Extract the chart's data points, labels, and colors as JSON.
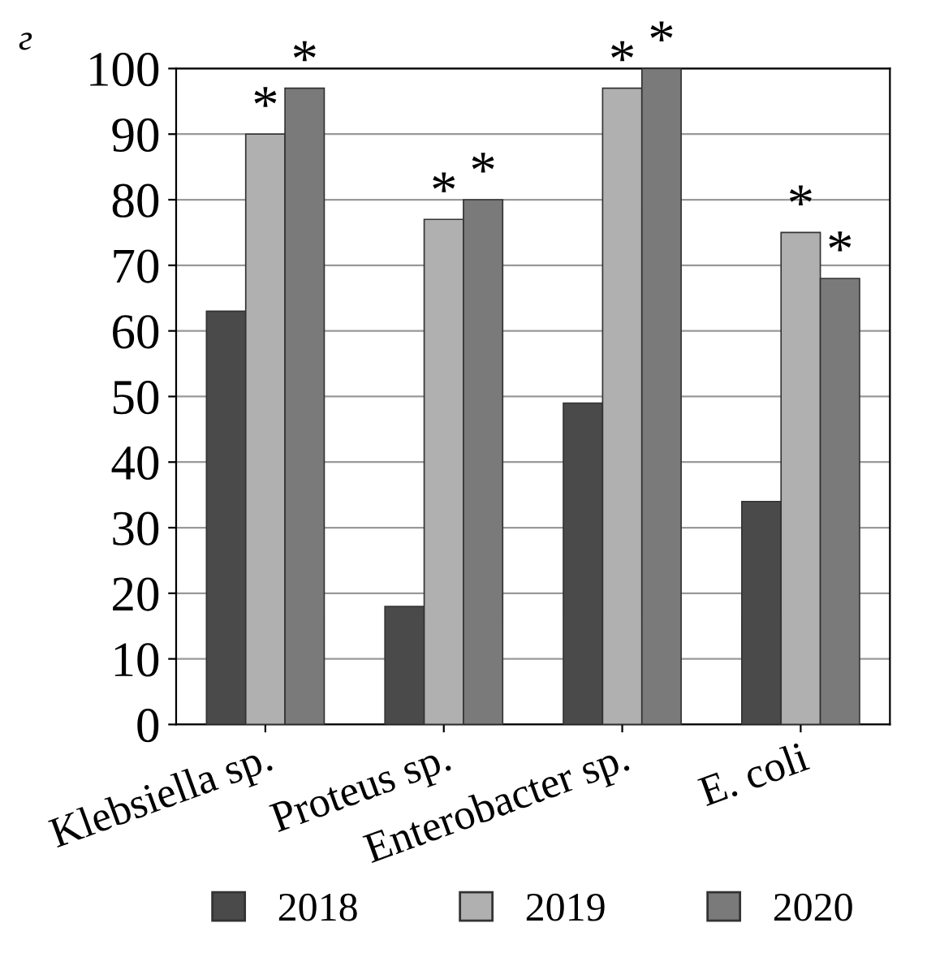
{
  "chart_data": {
    "type": "bar",
    "title": "г",
    "categories": [
      "Klebsiella sp.",
      "Proteus sp.",
      "Enterobacter sp.",
      "E. coli"
    ],
    "series": [
      {
        "name": "2018",
        "color": "#4a4a4a",
        "values": [
          63,
          18,
          49,
          34
        ]
      },
      {
        "name": "2019",
        "color": "#b0b0b0",
        "values": [
          90,
          77,
          97,
          75
        ],
        "value_labels": [
          "*",
          "*",
          "*",
          "*"
        ]
      },
      {
        "name": "2020",
        "color": "#7a7a7a",
        "values": [
          97,
          80,
          100,
          68
        ],
        "value_labels": [
          "*",
          "*",
          "*",
          "*"
        ]
      }
    ],
    "ylim": [
      0,
      100
    ],
    "yticks": [
      0,
      10,
      20,
      30,
      40,
      50,
      60,
      70,
      80,
      90,
      100
    ],
    "grid": "y",
    "legend": "bottom"
  }
}
